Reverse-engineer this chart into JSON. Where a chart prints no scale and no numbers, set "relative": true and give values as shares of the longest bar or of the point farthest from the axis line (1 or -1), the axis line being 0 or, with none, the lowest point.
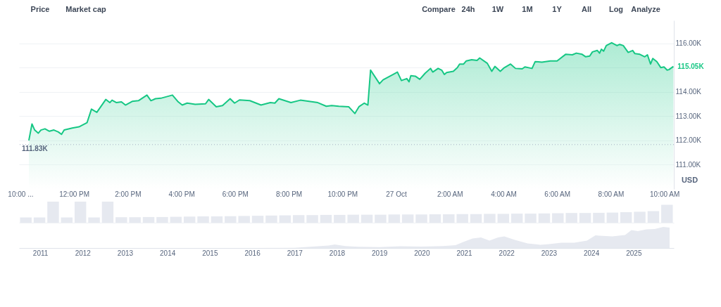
{
  "chart_data": [
    {
      "type": "area",
      "ylabel": "USD",
      "annotations": [
        "Price",
        "Market cap",
        "Compare",
        "24h",
        "1W",
        "1M",
        "1Y",
        "All",
        "Log",
        "Analyze",
        {
          "text": "115.05K",
          "x": "2025-10-27T10:20",
          "y": 115.05
        }
      ],
      "x": [
        "2025-10-26T10:19",
        "2025-10-26T10:26",
        "2025-10-26T10:32",
        "2025-10-26T10:40",
        "2025-10-26T10:46",
        "2025-10-26T10:55",
        "2025-10-26T11:05",
        "2025-10-26T11:15",
        "2025-10-26T11:25",
        "2025-10-26T11:32",
        "2025-10-26T11:38",
        "2025-10-26T11:56",
        "2025-10-26T12:11",
        "2025-10-26T12:29",
        "2025-10-26T12:39",
        "2025-10-26T12:51",
        "2025-10-26T13:11",
        "2025-10-26T13:20",
        "2025-10-26T13:25",
        "2025-10-26T13:35",
        "2025-10-26T13:46",
        "2025-10-26T13:55",
        "2025-10-26T14:10",
        "2025-10-26T14:24",
        "2025-10-26T14:43",
        "2025-10-26T14:52",
        "2025-10-26T15:02",
        "2025-10-26T15:14",
        "2025-10-26T15:40",
        "2025-10-26T15:53",
        "2025-10-26T16:02",
        "2025-10-26T16:13",
        "2025-10-26T16:31",
        "2025-10-26T16:54",
        "2025-10-26T17:01",
        "2025-10-26T17:18",
        "2025-10-26T17:32",
        "2025-10-26T17:49",
        "2025-10-26T17:59",
        "2025-10-26T18:10",
        "2025-10-26T18:33",
        "2025-10-26T18:58",
        "2025-10-26T19:19",
        "2025-10-26T19:29",
        "2025-10-26T19:38",
        "2025-10-26T20:05",
        "2025-10-26T20:26",
        "2025-10-26T21:05",
        "2025-10-26T21:24",
        "2025-10-26T21:36",
        "2025-10-26T21:52",
        "2025-10-26T22:14",
        "2025-10-26T22:28",
        "2025-10-26T22:37",
        "2025-10-26T22:49",
        "2025-10-26T22:57",
        "2025-10-26T23:03",
        "2025-10-26T23:23",
        "2025-10-26T23:31",
        "2025-10-26T23:53",
        "2025-10-27T00:03",
        "2025-10-27T00:12",
        "2025-10-27T00:24",
        "2025-10-27T00:29",
        "2025-10-27T00:33",
        "2025-10-27T00:43",
        "2025-10-27T00:53",
        "2025-10-27T01:05",
        "2025-10-27T01:17",
        "2025-10-27T01:22",
        "2025-10-27T01:34",
        "2025-10-27T01:42",
        "2025-10-27T01:48",
        "2025-10-27T01:53",
        "2025-10-27T02:08",
        "2025-10-27T02:17",
        "2025-10-27T02:22",
        "2025-10-27T02:31",
        "2025-10-27T02:37",
        "2025-10-27T02:49",
        "2025-10-27T03:01",
        "2025-10-27T03:07",
        "2025-10-27T03:24",
        "2025-10-27T03:34",
        "2025-10-27T03:41",
        "2025-10-27T03:53",
        "2025-10-27T04:02",
        "2025-10-27T04:16",
        "2025-10-27T04:27",
        "2025-10-27T04:42",
        "2025-10-27T04:48",
        "2025-10-27T05:04",
        "2025-10-27T05:11",
        "2025-10-27T05:26",
        "2025-10-27T05:45",
        "2025-10-27T06:00",
        "2025-10-27T06:19",
        "2025-10-27T06:34",
        "2025-10-27T06:43",
        "2025-10-27T06:56",
        "2025-10-27T07:04",
        "2025-10-27T07:13",
        "2025-10-27T07:19",
        "2025-10-27T07:30",
        "2025-10-27T07:35",
        "2025-10-27T07:39",
        "2025-10-27T07:44",
        "2025-10-27T07:50",
        "2025-10-27T08:02",
        "2025-10-27T08:14",
        "2025-10-27T08:20",
        "2025-10-27T08:28",
        "2025-10-27T08:39",
        "2025-10-27T08:49",
        "2025-10-27T08:54",
        "2025-10-27T09:05",
        "2025-10-27T09:16",
        "2025-10-27T09:22",
        "2025-10-27T09:29",
        "2025-10-27T09:34",
        "2025-10-27T09:43",
        "2025-10-27T09:52",
        "2025-10-27T09:59",
        "2025-10-27T10:06",
        "2025-10-27T10:10",
        "2025-10-27T10:20"
      ],
      "series": [
        {
          "color": "#16c784",
          "values": [
            112.0,
            112.68,
            112.43,
            112.3,
            112.43,
            112.48,
            112.38,
            112.43,
            112.35,
            112.25,
            112.43,
            112.51,
            112.56,
            112.73,
            113.29,
            113.16,
            113.69,
            113.56,
            113.66,
            113.56,
            113.59,
            113.46,
            113.61,
            113.64,
            113.87,
            113.64,
            113.72,
            113.74,
            113.87,
            113.59,
            113.46,
            113.54,
            113.49,
            113.51,
            113.69,
            113.39,
            113.44,
            113.72,
            113.54,
            113.67,
            113.64,
            113.46,
            113.56,
            113.54,
            113.72,
            113.56,
            113.66,
            113.56,
            113.41,
            113.44,
            113.41,
            113.39,
            113.11,
            113.39,
            113.54,
            113.46,
            114.9,
            114.34,
            114.5,
            114.72,
            114.82,
            114.47,
            114.55,
            114.42,
            114.67,
            114.65,
            114.52,
            114.77,
            114.97,
            114.82,
            114.97,
            114.9,
            114.72,
            114.8,
            114.85,
            115.0,
            115.15,
            115.15,
            115.28,
            115.33,
            115.3,
            115.4,
            115.18,
            114.85,
            115.05,
            114.85,
            115.0,
            115.15,
            114.97,
            114.95,
            115.03,
            114.97,
            115.25,
            115.23,
            115.28,
            115.28,
            115.55,
            115.53,
            115.6,
            115.55,
            115.45,
            115.48,
            115.65,
            115.71,
            115.6,
            115.76,
            115.68,
            115.91,
            116.03,
            115.91,
            115.96,
            115.91,
            115.63,
            115.71,
            115.58,
            115.55,
            115.45,
            115.53,
            115.15,
            115.38,
            115.25,
            115.0,
            115.03,
            114.9,
            114.92,
            115.05
          ]
        }
      ],
      "xlim": [
        "2025-10-26T09:57",
        "2025-10-27T10:21"
      ],
      "xticks": [
        {
          "value": "2025-10-26T10:00",
          "label": "10:00 ..."
        },
        {
          "value": "2025-10-26T12:00",
          "label": "12:00 PM"
        },
        {
          "value": "2025-10-26T14:00",
          "label": "2:00 PM"
        },
        {
          "value": "2025-10-26T16:00",
          "label": "4:00 PM"
        },
        {
          "value": "2025-10-26T18:00",
          "label": "6:00 PM"
        },
        {
          "value": "2025-10-26T20:00",
          "label": "8:00 PM"
        },
        {
          "value": "2025-10-26T22:00",
          "label": "10:00 PM"
        },
        {
          "value": "2025-10-27T00:00",
          "label": "27 Oct"
        },
        {
          "value": "2025-10-27T02:00",
          "label": "2:00 AM"
        },
        {
          "value": "2025-10-27T04:00",
          "label": "4:00 AM"
        },
        {
          "value": "2025-10-27T06:00",
          "label": "6:00 AM"
        },
        {
          "value": "2025-10-27T08:00",
          "label": "8:00 AM"
        },
        {
          "value": "2025-10-27T10:00",
          "label": "10:00 AM"
        }
      ],
      "ylim": [
        110.0,
        116.95
      ],
      "yticks": [
        {
          "value": 111,
          "label": "111.00K"
        },
        {
          "value": 112,
          "label": "112.00K"
        },
        {
          "value": 113,
          "label": "113.00K"
        },
        {
          "value": 114,
          "label": "114.00K"
        },
        {
          "value": 115,
          "label": null
        },
        {
          "value": 116,
          "label": "116.00K"
        }
      ],
      "ref_lines": [
        {
          "axis": "y",
          "value": 111.83,
          "label": "111.83K",
          "color": "#a6b0c3",
          "line_style": "dotted"
        }
      ],
      "grid": "y"
    },
    {
      "type": "bar",
      "relative": true,
      "tick_labels": false,
      "categories": [
        null,
        null,
        null,
        null,
        null,
        null,
        null,
        null,
        null,
        null,
        null,
        null,
        null,
        null,
        null,
        null,
        null,
        null,
        null,
        null,
        null,
        null,
        null,
        null,
        null,
        null,
        null,
        null,
        null,
        null,
        null,
        null,
        null,
        null,
        null,
        null,
        null,
        null,
        null,
        null,
        null,
        null,
        null,
        null,
        null,
        null,
        null,
        null
      ],
      "series": [
        {
          "color": "#e6e9f0",
          "values": [
            0.25,
            0.25,
            1.0,
            0.25,
            1.0,
            0.25,
            1.0,
            0.26,
            0.26,
            0.27,
            0.27,
            0.28,
            0.29,
            0.3,
            0.3,
            0.31,
            0.32,
            0.33,
            0.34,
            0.35,
            0.36,
            0.36,
            0.37,
            0.37,
            0.38,
            0.38,
            0.38,
            0.39,
            0.39,
            0.39,
            0.4,
            0.4,
            0.41,
            0.41,
            0.42,
            0.42,
            0.43,
            0.43,
            0.44,
            0.45,
            0.46,
            0.46,
            0.47,
            0.48,
            0.5,
            0.52,
            0.55,
            0.85
          ]
        }
      ]
    },
    {
      "type": "area",
      "relative": true,
      "tick_labels": "x",
      "x": [
        2010.55,
        2012,
        2014,
        2016,
        2017.0,
        2017.8,
        2017.95,
        2018.2,
        2018.5,
        2019.0,
        2019.5,
        2020.0,
        2020.5,
        2020.8,
        2021.0,
        2021.2,
        2021.4,
        2021.6,
        2021.8,
        2021.95,
        2022.2,
        2022.5,
        2022.8,
        2023.0,
        2023.3,
        2023.6,
        2023.9,
        2024.1,
        2024.2,
        2024.5,
        2024.8,
        2024.95,
        2025.1,
        2025.3,
        2025.5,
        2025.7,
        2025.85
      ],
      "xlim": [
        2010.5,
        2025.95
      ],
      "xticks": [
        2011,
        2012,
        2013,
        2014,
        2015,
        2016,
        2017,
        2018,
        2019,
        2020,
        2021,
        2022,
        2023,
        2024,
        2025
      ],
      "series": [
        {
          "color": "#e6e9f0",
          "values": [
            0,
            0,
            0,
            0,
            0.01,
            0.12,
            0.17,
            0.09,
            0.06,
            0.04,
            0.08,
            0.07,
            0.09,
            0.13,
            0.3,
            0.45,
            0.5,
            0.35,
            0.5,
            0.55,
            0.38,
            0.22,
            0.15,
            0.18,
            0.25,
            0.25,
            0.35,
            0.6,
            0.58,
            0.55,
            0.62,
            0.85,
            0.8,
            0.88,
            0.9,
            1.0,
            0.97
          ]
        }
      ]
    }
  ]
}
